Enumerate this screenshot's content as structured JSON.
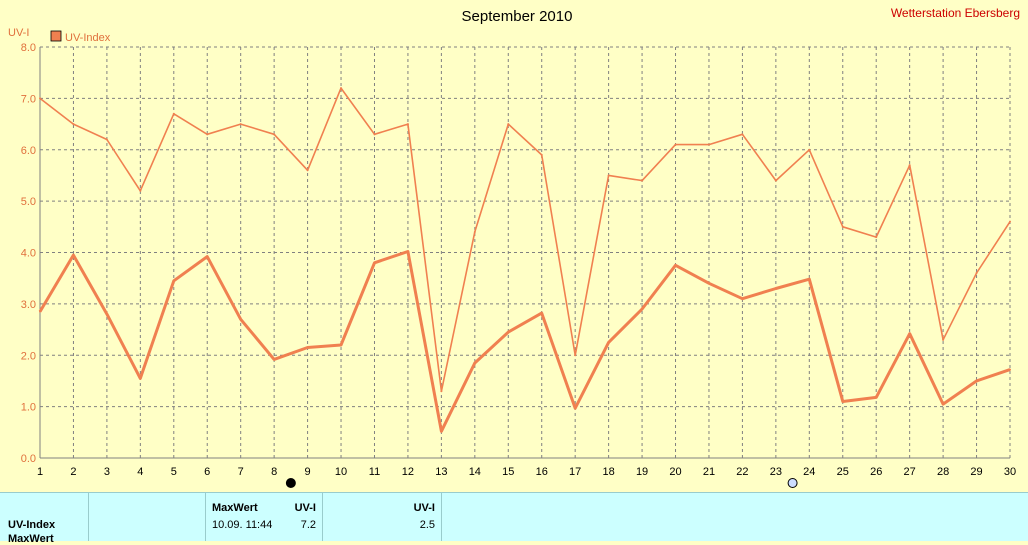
{
  "title": "September 2010",
  "station": "Wetterstation Ebersberg",
  "colors": {
    "background": "#ffffc6",
    "series": "#f08050",
    "grid": "#808080",
    "table_bg": "#ccffff",
    "station": "#cc0000"
  },
  "chart_data": {
    "type": "line",
    "title": "September 2010",
    "ylabel": "UV-I",
    "ylim": [
      0,
      8
    ],
    "yticks": [
      "0.0",
      "1.0",
      "2.0",
      "3.0",
      "4.0",
      "5.0",
      "6.0",
      "7.0",
      "8.0"
    ],
    "x": [
      1,
      2,
      3,
      4,
      5,
      6,
      7,
      8,
      9,
      10,
      11,
      12,
      13,
      14,
      15,
      16,
      17,
      18,
      19,
      20,
      21,
      22,
      23,
      24,
      25,
      26,
      27,
      28,
      29,
      30
    ],
    "legend": "UV-Index",
    "grid": true,
    "series": [
      {
        "name": "UV-Index",
        "style": "max-thin",
        "values": [
          7.0,
          6.5,
          6.2,
          5.2,
          6.7,
          6.3,
          6.5,
          6.3,
          5.6,
          7.2,
          6.3,
          6.5,
          1.3,
          4.4,
          6.5,
          5.9,
          2.0,
          5.5,
          5.4,
          6.1,
          6.1,
          6.3,
          5.4,
          6.0,
          4.5,
          4.3,
          5.7,
          2.3,
          3.6,
          4.6
        ]
      },
      {
        "name": "UV-Index",
        "style": "mean-thick",
        "values": [
          2.85,
          3.95,
          2.8,
          1.55,
          3.45,
          3.92,
          2.7,
          1.92,
          2.15,
          2.2,
          3.8,
          4.02,
          0.52,
          1.85,
          2.45,
          2.82,
          0.97,
          2.25,
          2.9,
          3.75,
          3.4,
          3.1,
          3.3,
          3.48,
          1.1,
          1.18,
          2.42,
          1.05,
          1.5,
          1.72
        ]
      }
    ]
  },
  "markers": [
    {
      "name": "marker-filled",
      "x": 8.5,
      "filled": true
    },
    {
      "name": "marker-hollow",
      "x": 23.5,
      "filled": false
    }
  ],
  "table": {
    "rows": [
      "UV-Index",
      "MaxWert"
    ],
    "header_max": "MaxWert",
    "header_uvi": "UV-I",
    "header_uvi2": "UV-I",
    "max_time": "10.09.  11:44",
    "max_value": "7.2",
    "mean_value": "2.5"
  }
}
